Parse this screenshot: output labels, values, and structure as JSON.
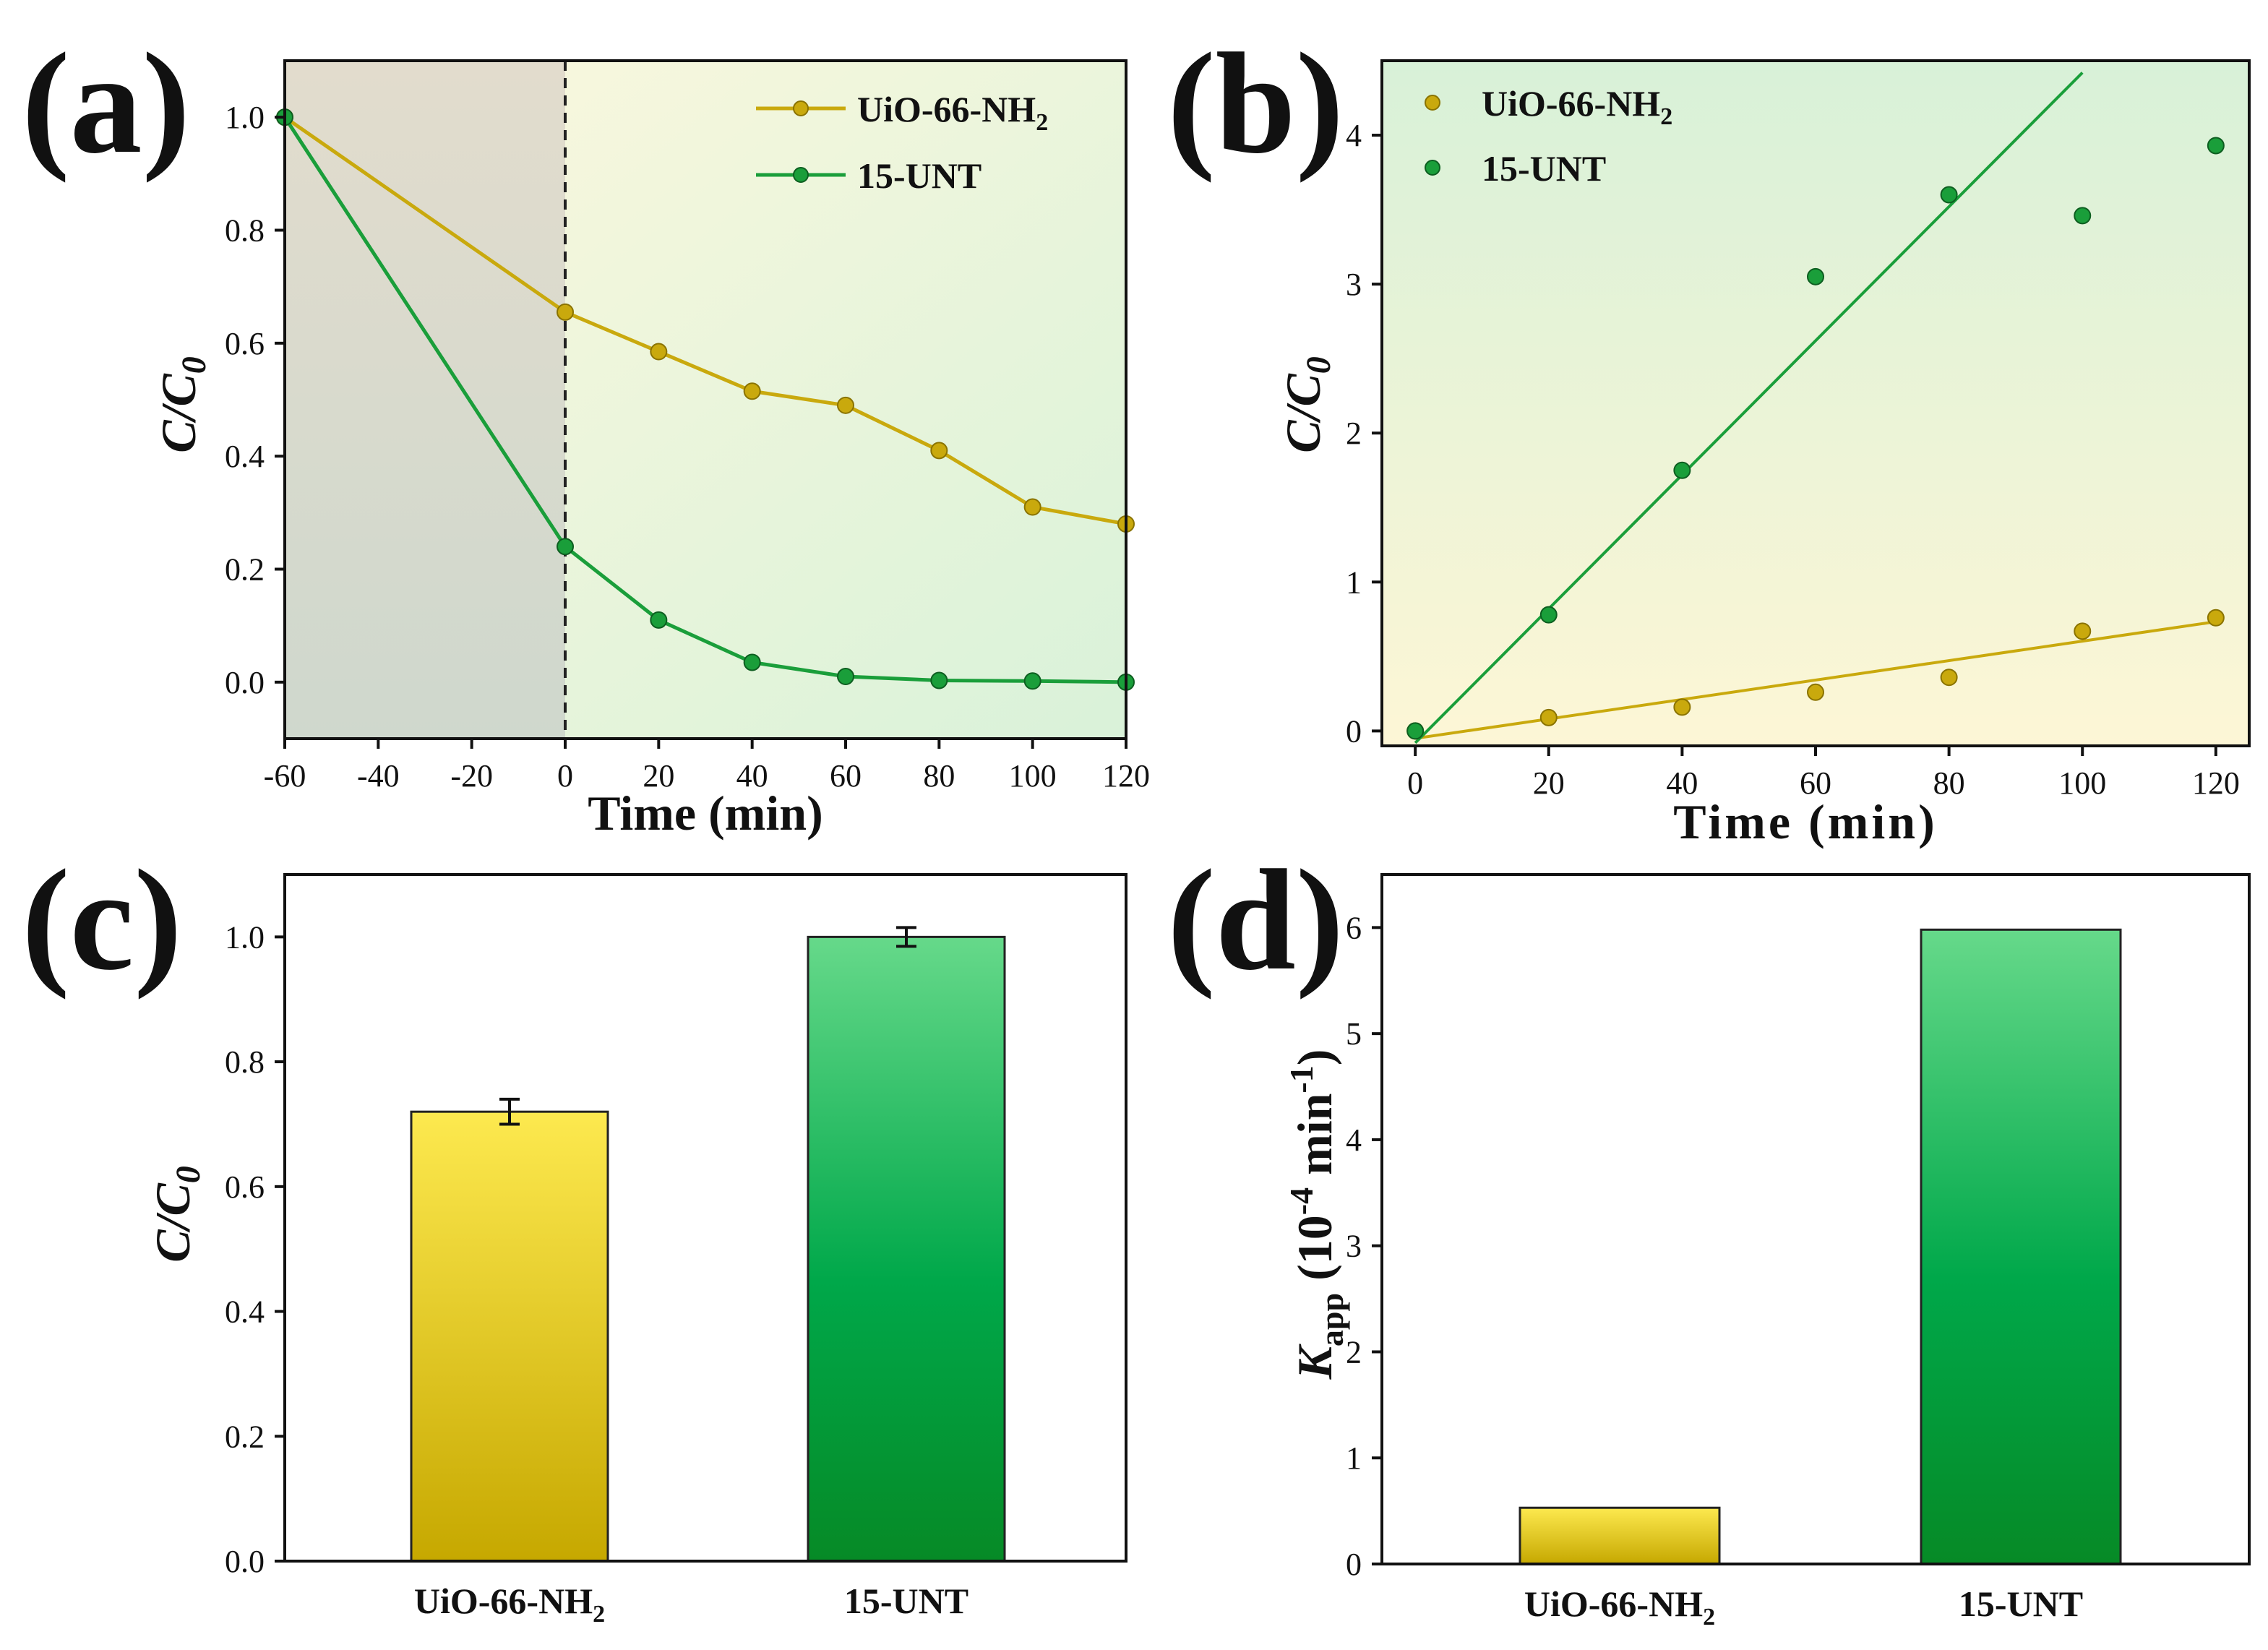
{
  "chart_data": [
    {
      "panel": "(a)",
      "type": "line",
      "xlabel": "Time (min)",
      "ylabel": "C/C0",
      "xlim": [
        -60,
        120
      ],
      "ylim": [
        -0.1,
        1.1
      ],
      "xticks": [
        -60,
        -40,
        -20,
        0,
        20,
        40,
        60,
        80,
        100,
        120
      ],
      "yticks": [
        0.0,
        0.2,
        0.4,
        0.6,
        0.8,
        1.0
      ],
      "xtick_labels": [
        "-60",
        "-40",
        "-20",
        "0",
        "20",
        "40",
        "60",
        "80",
        "100",
        "120"
      ],
      "ytick_labels": [
        "0.0",
        "0.2",
        "0.4",
        "0.6",
        "0.8",
        "1.0"
      ],
      "dark_region_end": 0,
      "series": [
        {
          "name": "UiO-66-NH",
          "name_sub": "2",
          "color": "#c9a90d",
          "x": [
            -60,
            0,
            20,
            40,
            60,
            80,
            100,
            120
          ],
          "y": [
            1.0,
            0.655,
            0.585,
            0.515,
            0.49,
            0.41,
            0.31,
            0.28
          ]
        },
        {
          "name": "15-UNT",
          "color": "#1a9e3a",
          "x": [
            -60,
            0,
            20,
            40,
            60,
            80,
            100,
            120
          ],
          "y": [
            1.0,
            0.24,
            0.11,
            0.035,
            0.01,
            0.003,
            0.002,
            0.0
          ]
        }
      ],
      "legend_position": "top-right"
    },
    {
      "panel": "(b)",
      "type": "scatter",
      "xlabel": "Time (min)",
      "ylabel": "C/C0",
      "xlim": [
        -5,
        125
      ],
      "ylim": [
        -0.1,
        4.5
      ],
      "xticks": [
        0,
        20,
        40,
        60,
        80,
        100,
        120
      ],
      "yticks": [
        0,
        1,
        2,
        3,
        4
      ],
      "xtick_labels": [
        "0",
        "20",
        "40",
        "60",
        "80",
        "100",
        "120"
      ],
      "ytick_labels": [
        "0",
        "1",
        "2",
        "3",
        "4"
      ],
      "series": [
        {
          "name": "UiO-66-NH",
          "name_sub": "2",
          "color": "#c9a90d",
          "x": [
            0,
            20,
            40,
            60,
            80,
            100,
            120
          ],
          "y": [
            0.0,
            0.09,
            0.16,
            0.26,
            0.36,
            0.67,
            0.76
          ],
          "fit": {
            "slope": 0.00653,
            "intercept": -0.05
          }
        },
        {
          "name": "15-UNT",
          "color": "#1a9e3a",
          "x": [
            0,
            20,
            40,
            60,
            80,
            100,
            120
          ],
          "y": [
            0.0,
            0.78,
            1.75,
            3.05,
            3.6,
            3.46,
            3.93
          ],
          "fit": {
            "slope": 0.045,
            "intercept": -0.08
          }
        }
      ],
      "legend_position": "top-left"
    },
    {
      "panel": "(c)",
      "type": "bar",
      "ylabel": "C/C0",
      "ylim": [
        0.0,
        1.1
      ],
      "yticks": [
        0.0,
        0.2,
        0.4,
        0.6,
        0.8,
        1.0
      ],
      "ytick_labels": [
        "0.0",
        "0.2",
        "0.4",
        "0.6",
        "0.8",
        "1.0"
      ],
      "categories": [
        "UiO-66-NH",
        "15-UNT"
      ],
      "category_subs": [
        "2",
        ""
      ],
      "values": [
        0.72,
        1.0
      ],
      "errors": [
        0.02,
        0.015
      ],
      "colors": [
        "#e0c200",
        "#1ab04a"
      ]
    },
    {
      "panel": "(d)",
      "type": "bar",
      "ylabel": "Kapp (10-4 min-1)",
      "ylim": [
        0,
        6.5
      ],
      "yticks": [
        0,
        1,
        2,
        3,
        4,
        5,
        6
      ],
      "ytick_labels": [
        "0",
        "1",
        "2",
        "3",
        "4",
        "5",
        "6"
      ],
      "categories": [
        "UiO-66-NH",
        "15-UNT"
      ],
      "category_subs": [
        "2",
        ""
      ],
      "values": [
        0.53,
        5.98
      ],
      "colors": [
        "#e0c200",
        "#1ab04a"
      ]
    }
  ]
}
